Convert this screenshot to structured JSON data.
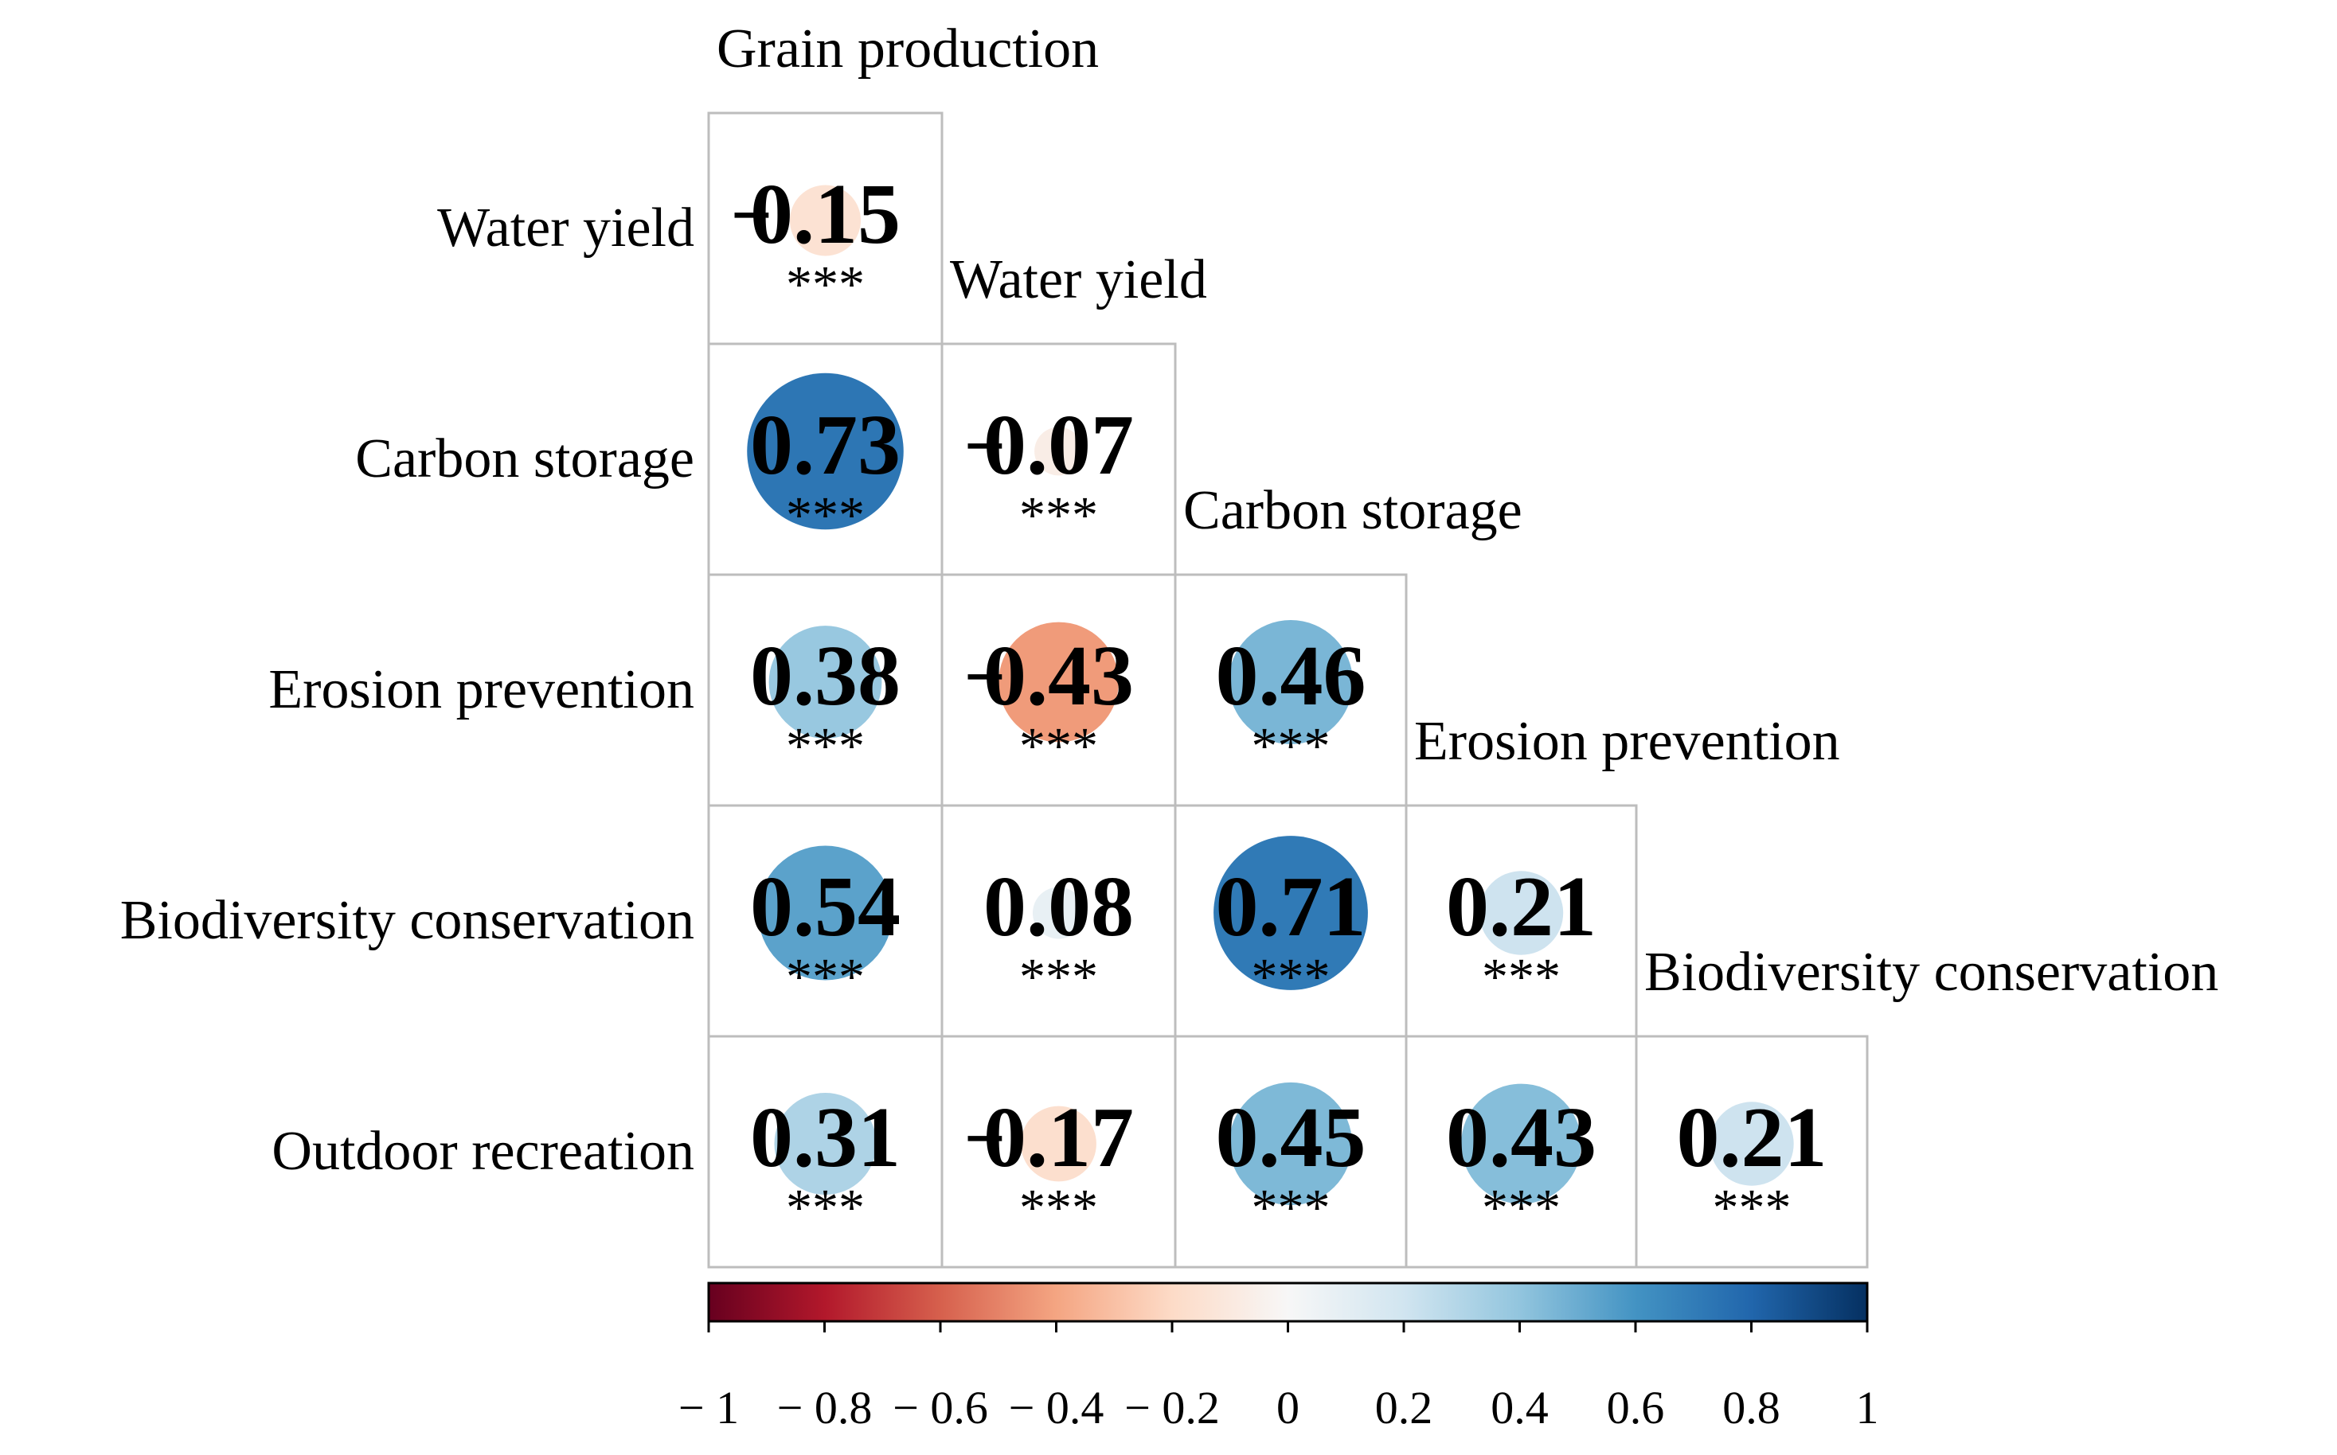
{
  "chart_data": {
    "type": "correlogram",
    "variables": [
      "Grain production",
      "Water yield",
      "Carbon storage",
      "Erosion prevention",
      "Biodiversity conservation",
      "Outdoor recreation"
    ],
    "col_labels": [
      "Grain production",
      "Water yield",
      "Carbon storage",
      "Erosion prevention",
      "Biodiversity conservation"
    ],
    "row_labels": [
      "Water yield",
      "Carbon storage",
      "Erosion prevention",
      "Biodiversity conservation",
      "Outdoor recreation"
    ],
    "cells": [
      {
        "row": 0,
        "col": 0,
        "value": -0.15,
        "label": "0.15",
        "sign": "−",
        "significance": "***"
      },
      {
        "row": 1,
        "col": 0,
        "value": 0.73,
        "label": "0.73",
        "sign": "",
        "significance": "***"
      },
      {
        "row": 1,
        "col": 1,
        "value": -0.07,
        "label": "0.07",
        "sign": "−",
        "significance": "***"
      },
      {
        "row": 2,
        "col": 0,
        "value": 0.38,
        "label": "0.38",
        "sign": "",
        "significance": "***"
      },
      {
        "row": 2,
        "col": 1,
        "value": -0.43,
        "label": "0.43",
        "sign": "−",
        "significance": "***"
      },
      {
        "row": 2,
        "col": 2,
        "value": 0.46,
        "label": "0.46",
        "sign": "",
        "significance": "***"
      },
      {
        "row": 3,
        "col": 0,
        "value": 0.54,
        "label": "0.54",
        "sign": "",
        "significance": "***"
      },
      {
        "row": 3,
        "col": 1,
        "value": 0.08,
        "label": "0.08",
        "sign": "",
        "significance": "***"
      },
      {
        "row": 3,
        "col": 2,
        "value": 0.71,
        "label": "0.71",
        "sign": "",
        "significance": "***"
      },
      {
        "row": 3,
        "col": 3,
        "value": 0.21,
        "label": "0.21",
        "sign": "",
        "significance": "***"
      },
      {
        "row": 4,
        "col": 0,
        "value": 0.31,
        "label": "0.31",
        "sign": "",
        "significance": "***"
      },
      {
        "row": 4,
        "col": 1,
        "value": -0.17,
        "label": "0.17",
        "sign": "−",
        "significance": "***"
      },
      {
        "row": 4,
        "col": 2,
        "value": 0.45,
        "label": "0.45",
        "sign": "",
        "significance": "***"
      },
      {
        "row": 4,
        "col": 3,
        "value": 0.43,
        "label": "0.43",
        "sign": "",
        "significance": "***"
      },
      {
        "row": 4,
        "col": 4,
        "value": 0.21,
        "label": "0.21",
        "sign": "",
        "significance": "***"
      }
    ],
    "colorbar": {
      "range": [
        -1,
        1
      ],
      "ticks": [
        -1,
        -0.8,
        -0.6,
        -0.4,
        -0.2,
        0,
        0.2,
        0.4,
        0.6,
        0.8,
        1
      ],
      "tick_labels": [
        "− 1",
        "− 0.8",
        "− 0.6",
        "− 0.4",
        "− 0.2",
        "0",
        "0.2",
        "0.4",
        "0.6",
        "0.8",
        "1"
      ],
      "colormap": "RdBu",
      "colors": {
        "neg_1": "#67001f",
        "neg_08": "#b2182b",
        "neg_06": "#d6604d",
        "neg_04": "#f4a582",
        "neg_02": "#fddbc7",
        "zero": "#f7f7f7",
        "pos_02": "#d1e5f0",
        "pos_04": "#92c5de",
        "pos_06": "#4393c3",
        "pos_08": "#2166ac",
        "pos_1": "#053061"
      }
    }
  }
}
